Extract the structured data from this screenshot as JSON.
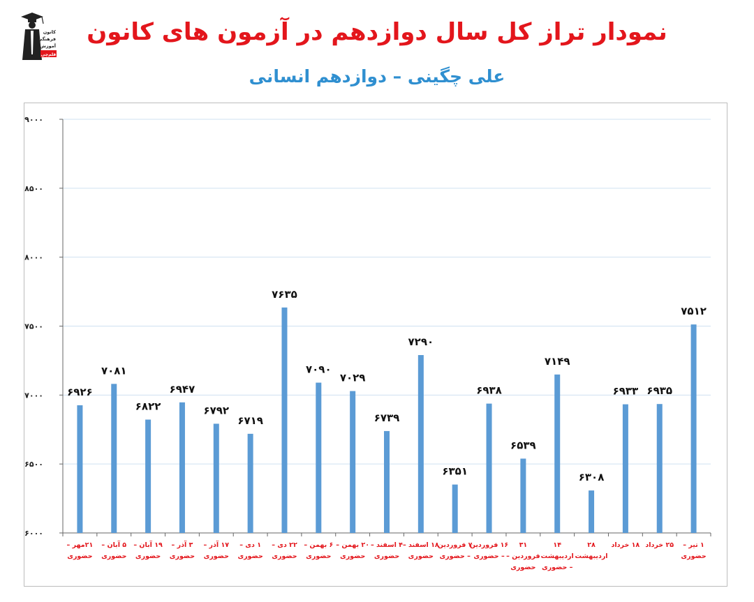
{
  "header": {
    "title": "نمودار تراز کل سال دوازدهم در آزمون های کانون",
    "subtitle": "علی چگینی – دوازدهم انسانی"
  },
  "logo": {
    "icon": "graduate-logo-icon",
    "lines": [
      "کانون",
      "فرهنگی",
      "آموزش",
      "قلم‌چی"
    ],
    "color": "#222222",
    "accent": "#e3161c"
  },
  "colors": {
    "bar": "#5b9bd5",
    "gridline": "#cfe0f0",
    "axis_label": "#e3161c",
    "data_label": "#111111"
  },
  "chart_data": {
    "type": "bar",
    "title": "",
    "xlabel": "",
    "ylabel": "",
    "ylim": [
      6000,
      9000
    ],
    "yticks": [
      6000,
      6500,
      7000,
      7500,
      8000,
      8500,
      9000
    ],
    "ytick_labels": [
      "۶۰۰۰",
      "۶۵۰۰",
      "۷۰۰۰",
      "۷۵۰۰",
      "۸۰۰۰",
      "۸۵۰۰",
      "۹۰۰۰"
    ],
    "grid": true,
    "legend": "none",
    "categories": [
      [
        "۲۱مهر –",
        "حضوری"
      ],
      [
        "۵ آبان –",
        "حضوری"
      ],
      [
        "۱۹ آبان –",
        "حضوری"
      ],
      [
        "۳ آذر –",
        "حضوری"
      ],
      [
        "۱۷ آذر –",
        "حضوری"
      ],
      [
        "۱ دی –",
        "حضوری"
      ],
      [
        "۲۲ دی –",
        "حضوری"
      ],
      [
        "۶ بهمن –",
        "حضوری"
      ],
      [
        "۲۰ بهمن –",
        "حضوری"
      ],
      [
        "۴ اسفند –",
        "حضوری"
      ],
      [
        "۱۸ اسفند –",
        "حضوری"
      ],
      [
        "۷ فروردین",
        "– حضوری"
      ],
      [
        "۱۶ فروردین",
        "– حضوری"
      ],
      [
        "۳۱",
        "فروردین –",
        "حضوری"
      ],
      [
        "۱۴",
        "اردیبهشت",
        "– حضوری"
      ],
      [
        "۲۸",
        "اردیبهشت"
      ],
      [
        "۱۸ خرداد"
      ],
      [
        "۲۵ خرداد"
      ],
      [
        "۱ تیر –",
        "حضوری"
      ]
    ],
    "values": [
      6926,
      7081,
      6822,
      6947,
      6792,
      6719,
      7635,
      7090,
      7029,
      6739,
      7290,
      6351,
      6938,
      6539,
      7149,
      6308,
      6933,
      6935,
      7512
    ],
    "value_labels": [
      "۶۹۲۶",
      "۷۰۸۱",
      "۶۸۲۲",
      "۶۹۴۷",
      "۶۷۹۲",
      "۶۷۱۹",
      "۷۶۳۵",
      "۷۰۹۰",
      "۷۰۲۹",
      "۶۷۳۹",
      "۷۲۹۰",
      "۶۳۵۱",
      "۶۹۳۸",
      "۶۵۳۹",
      "۷۱۴۹",
      "۶۳۰۸",
      "۶۹۳۳",
      "۶۹۳۵",
      "۷۵۱۲"
    ]
  }
}
